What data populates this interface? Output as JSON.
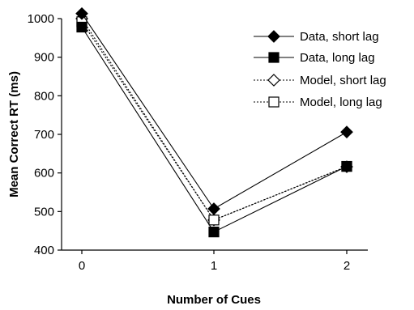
{
  "chart_data": {
    "type": "line",
    "title": "",
    "xlabel": "Number of Cues",
    "ylabel": "Mean Correct RT (ms)",
    "x": [
      0,
      1,
      2
    ],
    "x_ticks": [
      "0",
      "1",
      "2"
    ],
    "xlim": [
      0,
      2
    ],
    "ylim": [
      400,
      1000
    ],
    "y_ticks": [
      "400",
      "500",
      "600",
      "700",
      "800",
      "900",
      "1000"
    ],
    "y_tick_values": [
      400,
      500,
      600,
      700,
      800,
      900,
      1000
    ],
    "grid": false,
    "legend_position": "top-right",
    "series": [
      {
        "name": "Data, short lag",
        "values": [
          1013,
          507,
          706
        ],
        "marker": "diamond-filled",
        "line": "solid",
        "color": "#000000"
      },
      {
        "name": "Data, long lag",
        "values": [
          978,
          447,
          617
        ],
        "marker": "square-filled",
        "line": "solid",
        "color": "#000000"
      },
      {
        "name": "Model, short lag",
        "values": [
          1000,
          478,
          616
        ],
        "marker": "diamond-open",
        "line": "dotted",
        "color": "#000000"
      },
      {
        "name": "Model, long lag",
        "values": [
          992,
          478,
          617
        ],
        "marker": "square-open",
        "line": "dotted",
        "color": "#000000"
      }
    ]
  }
}
